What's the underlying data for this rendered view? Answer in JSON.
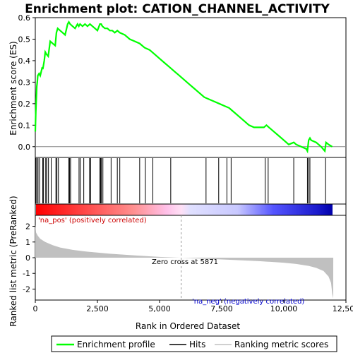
{
  "chart_data": {
    "type": "line",
    "title": "Enrichment plot: CATION_CHANNEL_ACTIVITY",
    "top_panel": {
      "ylabel": "Enrichment score (ES)",
      "ylim": [
        -0.05,
        0.6
      ],
      "yticks": [
        "0.0",
        "0.1",
        "0.2",
        "0.3",
        "0.4",
        "0.5",
        "0.6"
      ],
      "ytick_values": [
        0.0,
        0.1,
        0.2,
        0.3,
        0.4,
        0.5,
        0.6
      ],
      "series": [
        {
          "name": "Enrichment profile",
          "color": "#00ff00",
          "x": [
            0,
            20,
            40,
            60,
            80,
            100,
            150,
            200,
            280,
            300,
            360,
            400,
            450,
            520,
            600,
            700,
            800,
            850,
            900,
            1000,
            1100,
            1200,
            1300,
            1350,
            1400,
            1500,
            1600,
            1700,
            1750,
            1800,
            1900,
            2000,
            2100,
            2200,
            2300,
            2400,
            2500,
            2600,
            2650,
            2700,
            2800,
            2900,
            3000,
            3100,
            3200,
            3300,
            3400,
            3600,
            3800,
            4000,
            4200,
            4400,
            4600,
            4800,
            5000,
            5200,
            5400,
            5600,
            5800,
            6000,
            6200,
            6400,
            6600,
            6800,
            7000,
            7200,
            7400,
            7600,
            7800,
            7900,
            8000,
            8200,
            8400,
            8600,
            8800,
            9000,
            9200,
            9300,
            9400,
            9600,
            9800,
            10000,
            10200,
            10400,
            10500,
            10700,
            10900,
            10950,
            11000,
            11050,
            11100,
            11300,
            11500,
            11650,
            11700,
            11800,
            11950
          ],
          "y": [
            0.07,
            0.16,
            0.22,
            0.28,
            0.3,
            0.33,
            0.34,
            0.33,
            0.37,
            0.36,
            0.4,
            0.44,
            0.43,
            0.42,
            0.49,
            0.48,
            0.47,
            0.53,
            0.55,
            0.54,
            0.53,
            0.52,
            0.57,
            0.58,
            0.57,
            0.56,
            0.55,
            0.57,
            0.56,
            0.57,
            0.56,
            0.57,
            0.56,
            0.57,
            0.56,
            0.55,
            0.54,
            0.57,
            0.57,
            0.56,
            0.55,
            0.55,
            0.54,
            0.54,
            0.53,
            0.54,
            0.53,
            0.52,
            0.5,
            0.49,
            0.48,
            0.46,
            0.45,
            0.43,
            0.41,
            0.39,
            0.37,
            0.35,
            0.33,
            0.31,
            0.29,
            0.27,
            0.25,
            0.23,
            0.22,
            0.21,
            0.2,
            0.19,
            0.18,
            0.17,
            0.16,
            0.14,
            0.12,
            0.1,
            0.09,
            0.09,
            0.09,
            0.1,
            0.09,
            0.07,
            0.05,
            0.03,
            0.01,
            0.02,
            0.01,
            0.0,
            -0.01,
            -0.02,
            0.03,
            0.04,
            0.03,
            0.02,
            0.0,
            -0.02,
            0.02,
            0.01,
            0.0
          ]
        }
      ]
    },
    "hits": {
      "name": "Hits",
      "x": [
        20,
        60,
        110,
        170,
        300,
        330,
        420,
        460,
        530,
        640,
        830,
        870,
        930,
        1350,
        1380,
        1420,
        1760,
        1810,
        1950,
        2180,
        2230,
        2600,
        2630,
        2660,
        2720,
        3050,
        3300,
        3400,
        4200,
        4430,
        4730,
        5450,
        6870,
        7380,
        7710,
        7880,
        9250,
        9370,
        10400,
        10950,
        11000,
        11050,
        11680
      ]
    },
    "middle_labels": {
      "pos": "'na_pos' (positively correlated)",
      "zero_cross": "Zero cross at 5871",
      "neg": "'na_neg' (negatively correlated)"
    },
    "bottom_panel": {
      "ylabel": "Ranked list metric (PreRanked)",
      "xlabel": "Rank in Ordered Dataset",
      "ylim": [
        -2.7,
        2.7
      ],
      "yticks": [
        "2",
        "1",
        "0",
        "-1",
        "-2"
      ],
      "ytick_values": [
        2,
        1,
        0,
        -1,
        -2
      ],
      "xlim": [
        0,
        12500
      ],
      "xticks": [
        "0",
        "2,500",
        "5,000",
        "7,500",
        "10,000",
        "12,500"
      ],
      "xtick_values": [
        0,
        2500,
        5000,
        7500,
        10000,
        12500
      ],
      "zero_cross": 5871,
      "metric_series": {
        "name": "Ranking metric scores",
        "color": "#c0c0c0",
        "x": [
          0,
          30,
          100,
          200,
          400,
          700,
          1000,
          1500,
          2000,
          3000,
          4000,
          5000,
          5871,
          7000,
          8000,
          9000,
          10000,
          10500,
          11000,
          11300,
          11600,
          11800,
          11900,
          11950,
          11990
        ],
        "y": [
          2.1,
          1.6,
          1.4,
          1.2,
          1.0,
          0.8,
          0.65,
          0.5,
          0.4,
          0.25,
          0.15,
          0.05,
          0.0,
          -0.08,
          -0.15,
          -0.22,
          -0.32,
          -0.4,
          -0.52,
          -0.65,
          -0.85,
          -1.2,
          -1.6,
          -2.3,
          -2.6
        ]
      }
    },
    "legend": {
      "entries": [
        "Enrichment profile",
        "Hits",
        "Ranking metric scores"
      ],
      "colors": [
        "#00ff00",
        "#000000",
        "#c0c0c0"
      ],
      "placement": "bottom"
    }
  }
}
